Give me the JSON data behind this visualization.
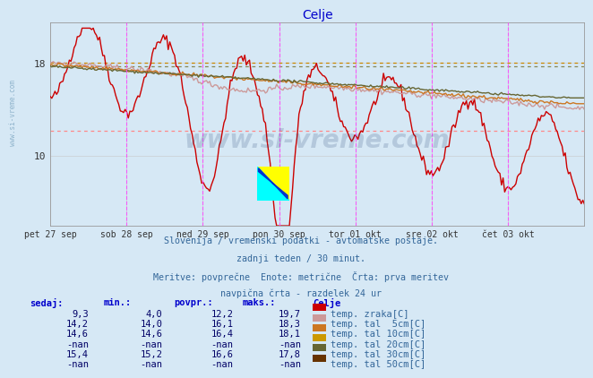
{
  "title": "Celje",
  "title_color": "#0000cc",
  "bg_color": "#d6e8f5",
  "xlabel_dates": [
    "pet 27 sep",
    "sob 28 sep",
    "ned 29 sep",
    "pon 30 sep",
    "tor 01 okt",
    "sre 02 okt",
    "čet 03 okt"
  ],
  "ylim": [
    4.0,
    21.5
  ],
  "yticks": [
    10,
    18
  ],
  "grid_color": "#c8c8c8",
  "vline_color": "#ff44ff",
  "hline_min_color": "#ff8888",
  "hline_max_color": "#cc8800",
  "hline_avg_color": "#888855",
  "subtitle_lines": [
    "Slovenija / vremenski podatki - avtomatske postaje.",
    "zadnji teden / 30 minut.",
    "Meritve: povprečne  Enote: metrične  Črta: prva meritev",
    "navpična črta - razdelek 24 ur"
  ],
  "subtitle_color": "#336699",
  "watermark_text": "www.si-vreme.com",
  "watermark_color": "#1a3a6b",
  "watermark_alpha": 0.18,
  "legend_header_color": "#0000cc",
  "legend_text_color": "#336699",
  "legend_value_color": "#000066",
  "series": [
    {
      "label": "temp. zraka[C]",
      "color": "#cc0000",
      "lw": 1.0,
      "sedaj": "9,3",
      "min": "4,0",
      "povpr": "12,2",
      "maks": "19,7",
      "legend_color": "#cc0000"
    },
    {
      "label": "temp. tal  5cm[C]",
      "color": "#cc9999",
      "lw": 1.0,
      "sedaj": "14,2",
      "min": "14,0",
      "povpr": "16,1",
      "maks": "18,3",
      "legend_color": "#cc9999"
    },
    {
      "label": "temp. tal 10cm[C]",
      "color": "#cc7722",
      "lw": 1.0,
      "sedaj": "14,6",
      "min": "14,6",
      "povpr": "16,4",
      "maks": "18,1",
      "legend_color": "#cc7722"
    },
    {
      "label": "temp. tal 20cm[C]",
      "color": "#cc9900",
      "lw": 1.0,
      "sedaj": "-nan",
      "min": "-nan",
      "povpr": "-nan",
      "maks": "-nan",
      "legend_color": "#cc9900"
    },
    {
      "label": "temp. tal 30cm[C]",
      "color": "#666633",
      "lw": 1.0,
      "sedaj": "15,4",
      "min": "15,2",
      "povpr": "16,6",
      "maks": "17,8",
      "legend_color": "#666633"
    },
    {
      "label": "temp. tal 50cm[C]",
      "color": "#663300",
      "lw": 1.0,
      "sedaj": "-nan",
      "min": "-nan",
      "povpr": "-nan",
      "maks": "-nan",
      "legend_color": "#663300"
    }
  ],
  "n_points": 336,
  "time_span_days": 7,
  "hline_min": 12.2,
  "hline_max": 18.0,
  "hline_avg": 17.75,
  "sidebar_text": "www.si-vreme.com",
  "sidebar_color": "#5588aa",
  "sidebar_alpha": 0.55
}
